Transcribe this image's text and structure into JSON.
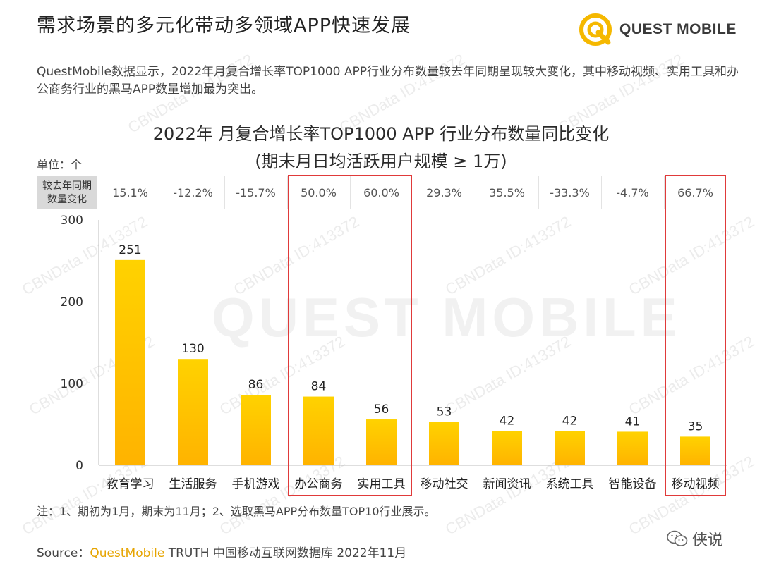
{
  "header": {
    "title": "需求场景的多元化带动多领域APP快速发展",
    "logo_text": "QUEST MOBILE"
  },
  "description": "QuestMobile数据显示，2022年月复合增长率TOP1000 APP行业分布数量较去年同期呈现较大变化，其中移动视频、实用工具和办公商务行业的黑马APP数量增加最为突出。",
  "watermark": {
    "text": "CBNData ID:413372",
    "brand": "QUEST MOBILE"
  },
  "yoy": {
    "label_line1": "较去年同期",
    "label_line2": "数量变化",
    "values": [
      "15.1%",
      "-12.2%",
      "-15.7%",
      "50.0%",
      "60.0%",
      "29.3%",
      "35.5%",
      "-33.3%",
      "-4.7%",
      "66.7%"
    ]
  },
  "chart_data": {
    "type": "bar",
    "title": "2022年 月复合增长率TOP1000 APP 行业分布数量同比变化",
    "subtitle": "(期末月日均活跃用户规模 ≥ 1万)",
    "unit_label": "单位：个",
    "categories": [
      "教育学习",
      "生活服务",
      "手机游戏",
      "办公商务",
      "实用工具",
      "移动社交",
      "新闻资讯",
      "系统工具",
      "智能设备",
      "移动视频"
    ],
    "values": [
      251,
      130,
      86,
      84,
      56,
      53,
      42,
      42,
      41,
      35
    ],
    "ylim": [
      0,
      300
    ],
    "yticks": [
      0,
      100,
      200,
      300
    ],
    "highlighted_categories": [
      "办公商务",
      "实用工具",
      "移动视频"
    ],
    "bar_color_top": "#ffd200",
    "bar_color_bottom": "#ffb300",
    "highlight_color": "#e03a3a"
  },
  "footer": {
    "note": "注：1、期初为1月，期末为11月；2、选取黑马APP分布数量TOP10行业展示。",
    "source_prefix": "Source：",
    "source_brand": "QuestMobile",
    "source_rest": " TRUTH 中国移动互联网数据库 2022年11月",
    "wechat_label": "侠说"
  }
}
